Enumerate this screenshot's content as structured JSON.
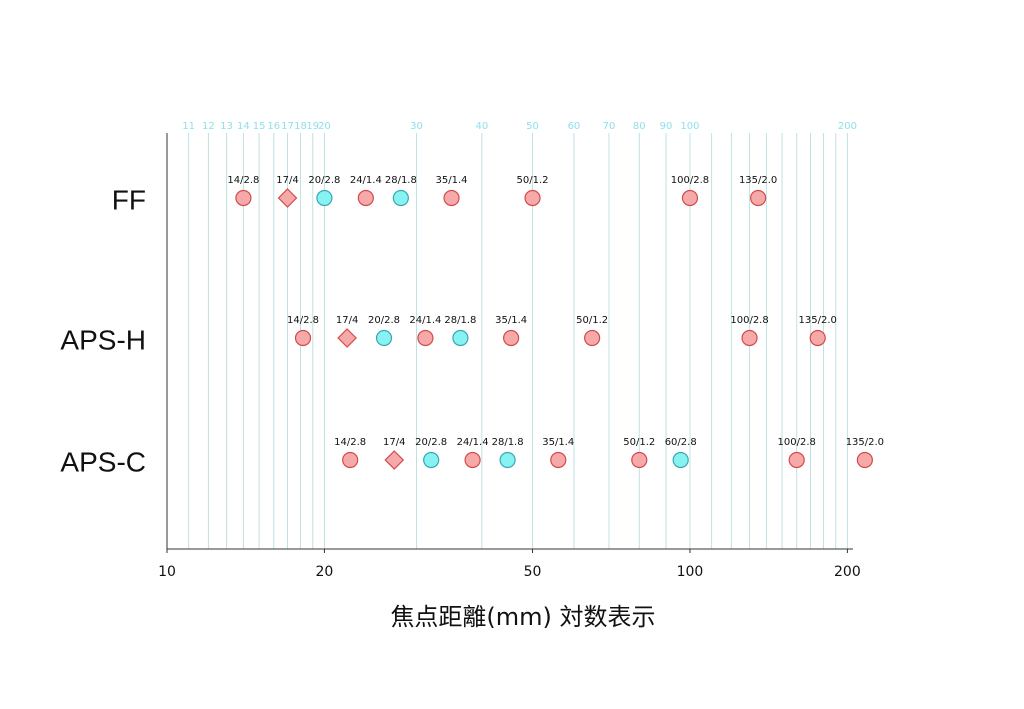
{
  "chart_data": {
    "type": "strip",
    "x_label": "焦点距離(mm) 対数表示",
    "xscale": "log",
    "xlim": [
      10,
      205
    ],
    "xticks": [
      10,
      20,
      50,
      100,
      200
    ],
    "top_xticks": [
      11,
      12,
      13,
      14,
      15,
      16,
      17,
      18,
      19,
      20,
      30,
      40,
      50,
      60,
      70,
      80,
      90,
      100,
      200
    ],
    "minor_gridlines": [
      110,
      120,
      130,
      140,
      150,
      160,
      170,
      180,
      190
    ],
    "series": [
      {
        "name": "FF",
        "x": [
          14,
          17,
          20,
          24,
          28,
          35,
          50,
          100,
          135
        ],
        "labels": [
          "14/2.8",
          "17/4",
          "20/2.8",
          "24/1.4",
          "28/1.8",
          "35/1.4",
          "50/1.2",
          "100/2.8",
          "135/2.0"
        ],
        "shapes": [
          "circle",
          "diamond",
          "circle",
          "circle",
          "circle",
          "circle",
          "circle",
          "circle",
          "circle"
        ],
        "colors": [
          "#f6a9a9",
          "#f6a9a9",
          "#86f2f2",
          "#f6a9a9",
          "#86f2f2",
          "#f6a9a9",
          "#f6a9a9",
          "#f6a9a9",
          "#f6a9a9"
        ]
      },
      {
        "name": "APS-H",
        "x": [
          18.2,
          22.1,
          26,
          31.2,
          36.4,
          45.5,
          65,
          130,
          175.5
        ],
        "labels": [
          "14/2.8",
          "17/4",
          "20/2.8",
          "24/1.4",
          "28/1.8",
          "35/1.4",
          "50/1.2",
          "100/2.8",
          "135/2.0"
        ],
        "shapes": [
          "circle",
          "diamond",
          "circle",
          "circle",
          "circle",
          "circle",
          "circle",
          "circle",
          "circle"
        ],
        "colors": [
          "#f6a9a9",
          "#f6a9a9",
          "#86f2f2",
          "#f6a9a9",
          "#86f2f2",
          "#f6a9a9",
          "#f6a9a9",
          "#f6a9a9",
          "#f6a9a9"
        ]
      },
      {
        "name": "APS-C",
        "x": [
          22.4,
          27.2,
          32,
          38.4,
          44.8,
          56,
          80,
          96,
          160,
          216
        ],
        "labels": [
          "14/2.8",
          "17/4",
          "20/2.8",
          "24/1.4",
          "28/1.8",
          "35/1.4",
          "50/1.2",
          "60/2.8",
          "100/2.8",
          "135/2.0"
        ],
        "shapes": [
          "circle",
          "diamond",
          "circle",
          "circle",
          "circle",
          "circle",
          "circle",
          "circle",
          "circle",
          "circle"
        ],
        "colors": [
          "#f6a9a9",
          "#f6a9a9",
          "#86f2f2",
          "#f6a9a9",
          "#86f2f2",
          "#f6a9a9",
          "#f6a9a9",
          "#86f2f2",
          "#f6a9a9",
          "#f6a9a9"
        ]
      }
    ]
  }
}
